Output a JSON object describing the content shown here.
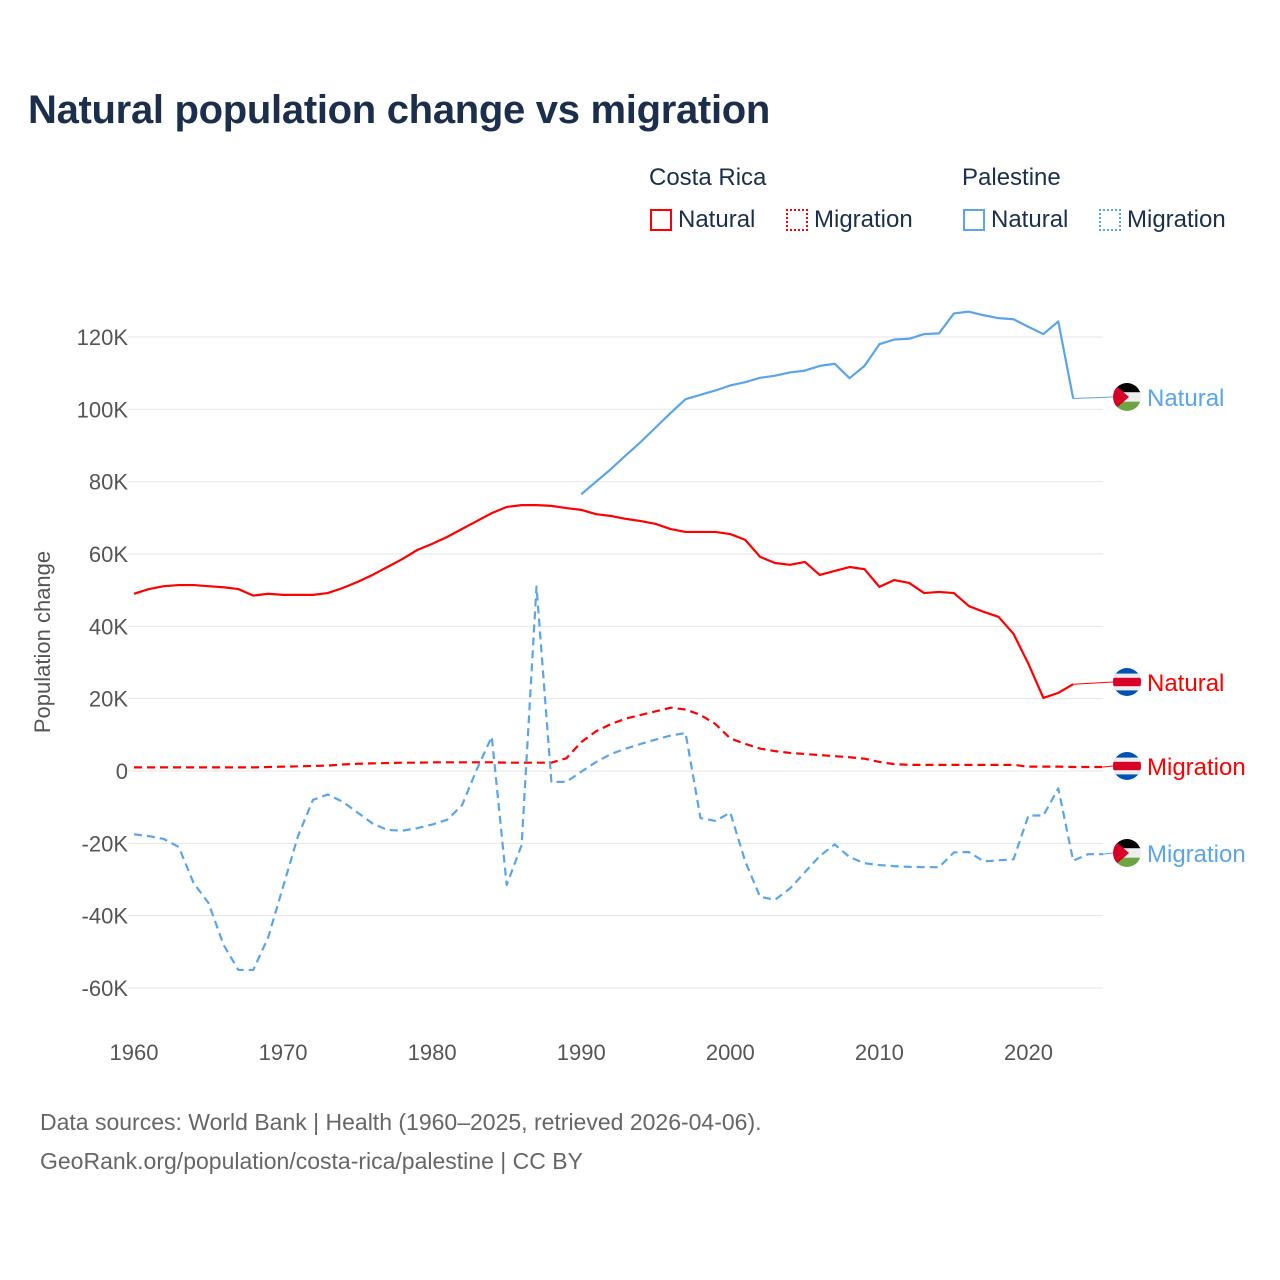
{
  "title": "Natural population change vs migration",
  "legend": {
    "groups": [
      {
        "country": "Costa Rica",
        "items": [
          {
            "label": "Natural",
            "style": "solid"
          },
          {
            "label": "Migration",
            "style": "dotted"
          }
        ],
        "color": "#ff0000"
      },
      {
        "country": "Palestine",
        "items": [
          {
            "label": "Natural",
            "style": "solid"
          },
          {
            "label": "Migration",
            "style": "dotted"
          }
        ],
        "color": "#5aa5ea"
      }
    ]
  },
  "footer": {
    "line1": "Data sources: World Bank | Health (1960–2025, retrieved 2026-04-06).",
    "line2": "GeoRank.org/population/costa-rica/palestine | CC BY"
  },
  "chart_data": {
    "type": "line",
    "title": "Natural population change vs migration",
    "xlabel": "",
    "ylabel": "Population change",
    "xlim": [
      1960,
      2025
    ],
    "ylim": [
      -70000,
      130000
    ],
    "x_ticks": [
      1960,
      1970,
      1980,
      1990,
      2000,
      2010,
      2020
    ],
    "x_tick_labels": [
      "1960",
      "1970",
      "1980",
      "1990",
      "2000",
      "2010",
      "2020"
    ],
    "y_ticks": [
      -60000,
      -40000,
      -20000,
      0,
      20000,
      40000,
      60000,
      80000,
      100000,
      120000
    ],
    "y_tick_labels": [
      "-60K",
      "-40K",
      "-20K",
      "0",
      "20K",
      "40K",
      "60K",
      "80K",
      "100K",
      "120K"
    ],
    "grid": true,
    "legend_position": "top-right",
    "series": [
      {
        "name": "Costa Rica Natural",
        "end_label": "Natural",
        "flag": "costa-rica",
        "color": "#ff0000",
        "dash": "solid",
        "start_year": 1960,
        "values": [
          49000,
          50300,
          51100,
          51400,
          51400,
          51100,
          50800,
          50300,
          48500,
          49000,
          48700,
          48700,
          48700,
          49200,
          50600,
          52300,
          54200,
          56400,
          58600,
          61100,
          62800,
          64700,
          66900,
          69100,
          71300,
          73000,
          73500,
          73500,
          73300,
          72700,
          72200,
          71000,
          70500,
          69700,
          69100,
          68300,
          66900,
          66100,
          66100,
          66100,
          65500,
          63900,
          59200,
          57500,
          57000,
          57800,
          54200,
          55300,
          56400,
          55800,
          50900,
          52800,
          52000,
          49200,
          49500,
          49200,
          45600,
          44000,
          42600,
          37900,
          29600,
          20200,
          21600,
          24000
        ]
      },
      {
        "name": "Costa Rica Migration",
        "end_label": "Migration",
        "flag": "costa-rica",
        "color": "#ff0000",
        "dash": "dashed",
        "start_year": 1960,
        "values": [
          1000,
          1000,
          1000,
          1000,
          1000,
          1000,
          1000,
          1000,
          1000,
          1100,
          1200,
          1300,
          1400,
          1500,
          1800,
          2000,
          2100,
          2200,
          2300,
          2300,
          2400,
          2400,
          2400,
          2400,
          2400,
          2300,
          2300,
          2300,
          2300,
          3500,
          8000,
          11000,
          13000,
          14500,
          15500,
          16500,
          17500,
          17000,
          15500,
          13000,
          9000,
          7500,
          6200,
          5500,
          5000,
          4700,
          4400,
          4100,
          3800,
          3400,
          2500,
          1900,
          1700,
          1700,
          1700,
          1700,
          1700,
          1700,
          1700,
          1700,
          1200,
          1200,
          1200,
          1100,
          1100,
          1100
        ]
      },
      {
        "name": "Palestine Natural",
        "end_label": "Natural",
        "flag": "palestine",
        "color": "#5aa5ea",
        "dash": "solid",
        "start_year": 1990,
        "values": [
          76500,
          80000,
          83500,
          87300,
          91000,
          95000,
          99000,
          102800,
          104000,
          105200,
          106600,
          107500,
          108700,
          109300,
          110200,
          110700,
          112000,
          112600,
          108600,
          112000,
          118000,
          119300,
          119500,
          120800,
          121000,
          126500,
          127000,
          126000,
          125200,
          124900,
          122800,
          120800,
          124300,
          103000
        ]
      },
      {
        "name": "Palestine Migration",
        "end_label": "Migration",
        "flag": "palestine",
        "color": "#5aa5ea",
        "dash": "dashed",
        "start_year": 1960,
        "values": [
          -17500,
          -18000,
          -18800,
          -21000,
          -31000,
          -36500,
          -48000,
          -55000,
          -55000,
          -46000,
          -32000,
          -18000,
          -8000,
          -6500,
          -8500,
          -11500,
          -14500,
          -16300,
          -16500,
          -15800,
          -14800,
          -13500,
          -9500,
          500,
          9500,
          -31500,
          -20500,
          51000,
          -3000,
          -3000,
          -200,
          2500,
          4700,
          6200,
          7500,
          8700,
          9800,
          10500,
          -13000,
          -13800,
          -11500,
          -25000,
          -34800,
          -35600,
          -32500,
          -28000,
          -23500,
          -20300,
          -23800,
          -25500,
          -26000,
          -26300,
          -26500,
          -26600,
          -26600,
          -22500,
          -22400,
          -25000,
          -24700,
          -24400,
          -12300,
          -12300,
          -4800,
          -24800,
          -23000,
          -23000
        ]
      }
    ]
  }
}
